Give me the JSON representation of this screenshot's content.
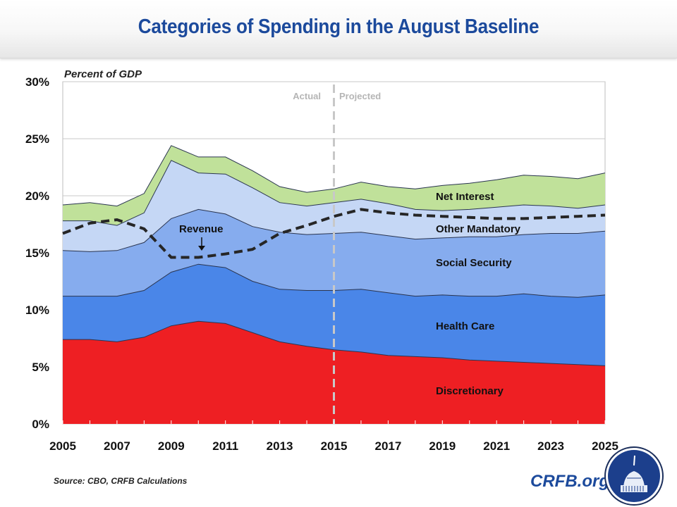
{
  "header": {
    "title": "Categories of Spending in the August Baseline"
  },
  "footer": {
    "source": "Source: CBO, CRFB Calculations",
    "brand": "CRFB.org"
  },
  "logo": {
    "icon": "capitol-dome-icon",
    "color": "#1c3f8c"
  },
  "chart_data": {
    "type": "area",
    "stacked": true,
    "title": "Categories of Spending in the August Baseline",
    "ylabel": "Percent of GDP",
    "xlabel": "",
    "x": [
      2005,
      2006,
      2007,
      2008,
      2009,
      2010,
      2011,
      2012,
      2013,
      2014,
      2015,
      2016,
      2017,
      2018,
      2019,
      2020,
      2021,
      2022,
      2023,
      2024,
      2025
    ],
    "xticks": [
      "2005",
      "2007",
      "2009",
      "2011",
      "2013",
      "2015",
      "2017",
      "2019",
      "2021",
      "2023",
      "2025"
    ],
    "xlim": [
      2005,
      2025
    ],
    "ylim": [
      0,
      30
    ],
    "yticks": [
      "0%",
      "5%",
      "10%",
      "15%",
      "20%",
      "25%",
      "30%"
    ],
    "ytick_values": [
      0,
      5,
      10,
      15,
      20,
      25,
      30
    ],
    "grid": true,
    "note": "Series values are cumulative stacked totals (top of each band), percent of GDP",
    "series": [
      {
        "name": "Discretionary",
        "color": "#ee1f23",
        "cumulative": [
          7.4,
          7.4,
          7.2,
          7.6,
          8.6,
          9.0,
          8.8,
          8.0,
          7.2,
          6.8,
          6.5,
          6.3,
          6.0,
          5.9,
          5.8,
          5.6,
          5.5,
          5.4,
          5.3,
          5.2,
          5.1
        ]
      },
      {
        "name": "Health Care",
        "color": "#4a86e8",
        "cumulative": [
          11.2,
          11.2,
          11.2,
          11.7,
          13.3,
          14.0,
          13.7,
          12.5,
          11.8,
          11.7,
          11.7,
          11.8,
          11.5,
          11.2,
          11.3,
          11.2,
          11.2,
          11.4,
          11.2,
          11.1,
          11.3
        ]
      },
      {
        "name": "Social Security",
        "color": "#86acee",
        "cumulative": [
          15.2,
          15.1,
          15.2,
          15.9,
          18.0,
          18.8,
          18.4,
          17.3,
          16.8,
          16.6,
          16.7,
          16.8,
          16.5,
          16.2,
          16.3,
          16.4,
          16.4,
          16.6,
          16.7,
          16.7,
          16.9
        ]
      },
      {
        "name": "Other Mandatory",
        "color": "#c5d7f5",
        "cumulative": [
          17.8,
          17.8,
          17.4,
          18.5,
          23.1,
          22.0,
          21.9,
          20.7,
          19.4,
          19.1,
          19.4,
          19.7,
          19.3,
          18.8,
          18.7,
          18.8,
          19.0,
          19.2,
          19.1,
          18.9,
          19.2
        ]
      },
      {
        "name": "Net Interest",
        "color": "#c0e19a",
        "cumulative": [
          19.2,
          19.4,
          19.1,
          20.2,
          24.4,
          23.4,
          23.4,
          22.2,
          20.8,
          20.3,
          20.6,
          21.2,
          20.8,
          20.6,
          20.9,
          21.1,
          21.4,
          21.8,
          21.7,
          21.5,
          22.0
        ]
      }
    ],
    "line_series": {
      "name": "Revenue",
      "style": "dashed",
      "color": "#262626",
      "values": [
        16.7,
        17.6,
        17.9,
        17.1,
        14.6,
        14.6,
        14.9,
        15.3,
        16.7,
        17.4,
        18.2,
        18.8,
        18.5,
        18.3,
        18.2,
        18.1,
        18.0,
        18.0,
        18.1,
        18.2,
        18.3
      ]
    },
    "annotations": [
      {
        "text": "Revenue",
        "points_to_year": 2010
      },
      {
        "text": "Actual",
        "region": "left of 2015"
      },
      {
        "text": "Projected",
        "region": "right of 2015"
      }
    ],
    "divider_year": 2015,
    "labels": {
      "net_interest": "Net Interest",
      "other_mandatory": "Other Mandatory",
      "social_security": "Social Security",
      "health_care": "Health Care",
      "discretionary": "Discretionary",
      "revenue": "Revenue",
      "actual": "Actual",
      "projected": "Projected"
    }
  }
}
